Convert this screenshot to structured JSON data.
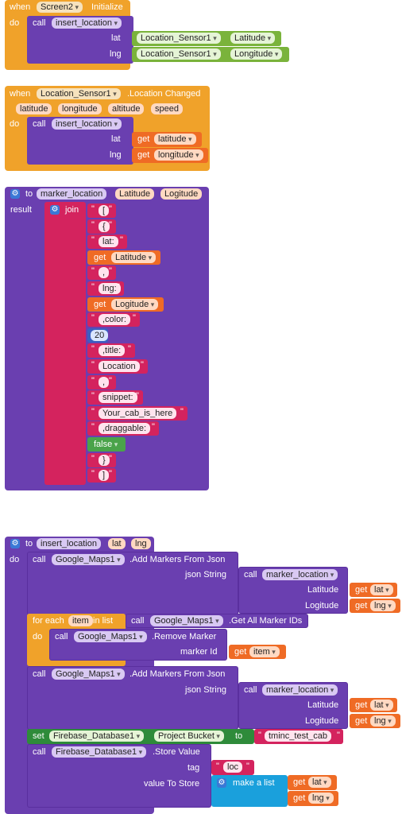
{
  "block1": {
    "when": "when",
    "component": "Screen2",
    "event": "Initialize",
    "do": "do",
    "call": "call",
    "procedure": "insert_location",
    "arg1_label": "lat",
    "arg1_comp": "Location_Sensor1",
    "arg1_prop": "Latitude",
    "arg2_label": "lng",
    "arg2_comp": "Location_Sensor1",
    "arg2_prop": "Longitude"
  },
  "block2": {
    "when": "when",
    "component": "Location_Sensor1",
    "event": ".Location Changed",
    "params": [
      "latitude",
      "longitude",
      "altitude",
      "speed"
    ],
    "do": "do",
    "call": "call",
    "procedure": "insert_location",
    "arg1_label": "lat",
    "arg1_get": "get",
    "arg1_var": "latitude",
    "arg2_label": "lng",
    "arg2_get": "get",
    "arg2_var": "longitude"
  },
  "block3": {
    "to": "to",
    "name": "marker_location",
    "param1": "Latitude",
    "param2": "Logitude",
    "result": "result",
    "join": "join",
    "items": [
      {
        "type": "text",
        "value": "["
      },
      {
        "type": "text",
        "value": "{"
      },
      {
        "type": "text",
        "value": "lat:"
      },
      {
        "type": "get",
        "get": "get",
        "value": "Latitude"
      },
      {
        "type": "text",
        "value": ","
      },
      {
        "type": "text",
        "value": "lng:"
      },
      {
        "type": "get",
        "get": "get",
        "value": "Logitude"
      },
      {
        "type": "text",
        "value": ",color:"
      },
      {
        "type": "num",
        "value": "20"
      },
      {
        "type": "text",
        "value": ",title:"
      },
      {
        "type": "text",
        "value": "Location"
      },
      {
        "type": "text",
        "value": ","
      },
      {
        "type": "text",
        "value": "snippet:"
      },
      {
        "type": "text",
        "value": "Your_cab_is_here"
      },
      {
        "type": "text",
        "value": ",draggable:"
      },
      {
        "type": "bool",
        "value": "false"
      },
      {
        "type": "text",
        "value": "}"
      },
      {
        "type": "text",
        "value": "]"
      }
    ]
  },
  "block4": {
    "to": "to",
    "name": "insert_location",
    "param1": "lat",
    "param2": "lng",
    "do": "do",
    "call": "call",
    "maps": "Google_Maps1",
    "add_markers": ".Add Markers From Json",
    "json_string": "json String",
    "marker_location": "marker_location",
    "latitude": "Latitude",
    "logitude": "Logitude",
    "get": "get",
    "lat": "lat",
    "lng": "lng",
    "for_each": "for each",
    "item": "item",
    "in_list": "in list",
    "get_all_ids": ".Get All Marker IDs",
    "remove_marker": ".Remove Marker",
    "marker_id": "marker Id",
    "set": "set",
    "firebase": "Firebase_Database1",
    "project_bucket": "Project Bucket",
    "to_kw": "to",
    "bucket_value": "tminc_test_cab",
    "store_value": ".Store Value",
    "tag": "tag",
    "tag_value": "loc",
    "value_to_store": "value To Store",
    "make_list": "make a list"
  }
}
